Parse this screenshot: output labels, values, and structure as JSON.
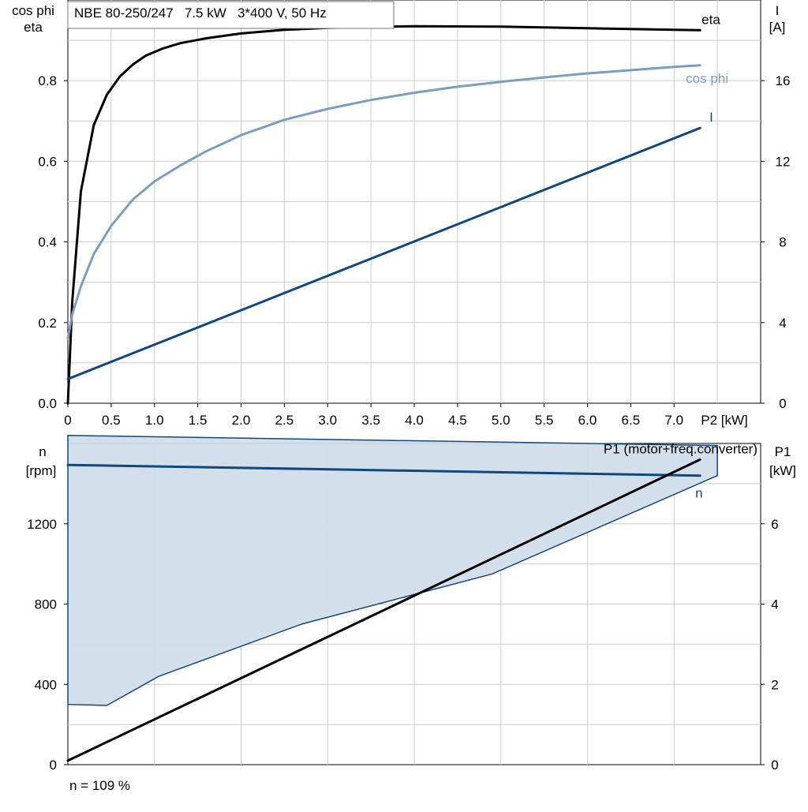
{
  "colors": {
    "eta": "#000000",
    "cosphi": "#7a9ebf",
    "current": "#0f4880",
    "speed": "#0f4880",
    "p1": "#000000",
    "envelope_fill": "#d1dde9",
    "envelope_edge": "#0f4880",
    "grid": "#cccccc",
    "axis": "#000000"
  },
  "title_box": "NBE 80-250/247   7.5 kW   3*400 V, 50 Hz",
  "footer_note": "n = 109 %",
  "chart_data": [
    {
      "type": "line",
      "title": "NBE 80-250/247   7.5 kW   3*400 V, 50 Hz",
      "xlabel": "P2 [kW]",
      "xlim": [
        0,
        8
      ],
      "x_ticks": [
        0,
        0.5,
        1.0,
        1.5,
        2.0,
        2.5,
        3.0,
        3.5,
        4.0,
        4.5,
        5.0,
        5.5,
        6.0,
        6.5,
        7.0
      ],
      "x_tick_labels": [
        "0",
        "0.5",
        "1.0",
        "1.5",
        "2.0",
        "2.5",
        "3.0",
        "3.5",
        "4.0",
        "4.5",
        "5.0",
        "5.5",
        "6.0",
        "6.5",
        "7.0"
      ],
      "ylabel_left": [
        "cos phi",
        "eta"
      ],
      "ylim_left": [
        0,
        1.0
      ],
      "y_ticks_left": [
        0,
        0.2,
        0.4,
        0.6,
        0.8
      ],
      "y_tick_labels_left": [
        "0.0",
        "0.2",
        "0.4",
        "0.6",
        "0.8"
      ],
      "ylabel_right": [
        "I",
        "[A]"
      ],
      "ylim_right": [
        0,
        20
      ],
      "y_ticks_right": [
        0,
        4,
        8,
        12,
        16
      ],
      "y_tick_labels_right": [
        "0",
        "4",
        "8",
        "12",
        "16"
      ],
      "grid": true,
      "series": [
        {
          "name": "eta",
          "axis": "left",
          "x": [
            0,
            0.05,
            0.15,
            0.3,
            0.45,
            0.6,
            0.75,
            0.9,
            1.1,
            1.3,
            1.6,
            2.0,
            2.5,
            3.0,
            4.0,
            5.0,
            6.0,
            7.0,
            7.3
          ],
          "y": [
            0,
            0.25,
            0.525,
            0.69,
            0.765,
            0.81,
            0.84,
            0.862,
            0.88,
            0.893,
            0.905,
            0.917,
            0.926,
            0.931,
            0.935,
            0.934,
            0.93,
            0.926,
            0.925
          ]
        },
        {
          "name": "cos phi",
          "axis": "left",
          "x": [
            0,
            0.05,
            0.15,
            0.3,
            0.5,
            0.75,
            1.0,
            1.3,
            1.6,
            2.0,
            2.5,
            3.0,
            3.5,
            4.0,
            4.5,
            5.0,
            5.5,
            6.0,
            6.5,
            7.0,
            7.3
          ],
          "y": [
            0.16,
            0.22,
            0.29,
            0.37,
            0.44,
            0.505,
            0.55,
            0.59,
            0.625,
            0.665,
            0.703,
            0.73,
            0.752,
            0.77,
            0.785,
            0.797,
            0.808,
            0.818,
            0.826,
            0.834,
            0.838
          ]
        },
        {
          "name": "I",
          "axis": "right",
          "x": [
            0,
            7.3
          ],
          "y": [
            1.2,
            13.65
          ]
        }
      ]
    },
    {
      "type": "area",
      "xlabel": "",
      "xlim": [
        0,
        8
      ],
      "ylabel_left": [
        "n",
        "[rpm]"
      ],
      "ylim_left": [
        0,
        1600
      ],
      "y_ticks_left": [
        0,
        400,
        800,
        1200
      ],
      "y_tick_labels_left": [
        "0",
        "400",
        "800",
        "1200"
      ],
      "ylabel_right": [
        "P1",
        "[kW]"
      ],
      "ylim_right": [
        0,
        8
      ],
      "y_ticks_right": [
        0,
        2,
        4,
        6
      ],
      "y_tick_labels_right": [
        "0",
        "2",
        "4",
        "6"
      ],
      "grid": true,
      "envelope": {
        "x": [
          0,
          2.7,
          4.9,
          7.5,
          7.5,
          4.0,
          0
        ],
        "y": [
          1640,
          1600,
          1590,
          1580,
          1440,
          1440,
          1640
        ],
        "lower_x": [
          0,
          0.45,
          1.05,
          2.7,
          4.9,
          7.5
        ],
        "lower_y": [
          300,
          295,
          440,
          700,
          950,
          1440
        ]
      },
      "series": [
        {
          "name": "n",
          "axis": "left",
          "x": [
            0,
            7.3
          ],
          "y": [
            1493,
            1440
          ]
        },
        {
          "name": "P1 (motor+freq.converter)",
          "axis": "right",
          "x": [
            0,
            7.3
          ],
          "y": [
            0.1,
            7.6
          ]
        }
      ]
    }
  ]
}
